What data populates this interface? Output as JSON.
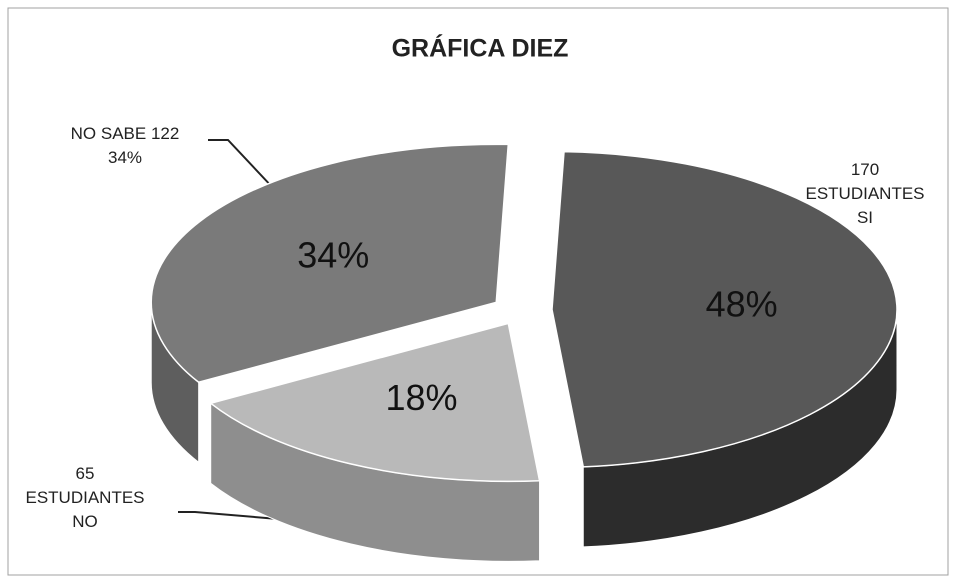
{
  "chart_data": {
    "type": "pie",
    "title": "GRÁFICA DIEZ",
    "categories": [
      "170 ESTUDIANTES SI",
      "65 ESTUDIANTES NO",
      "NO SABE 122"
    ],
    "values": [
      48,
      18,
      34
    ],
    "value_labels": [
      "48%",
      "18%",
      "34%"
    ],
    "colors": [
      "#585858",
      "#b9b9b9",
      "#7a7a7a"
    ],
    "side_colors": [
      "#2c2c2c",
      "#8e8e8e",
      "#5e5e5e"
    ]
  }
}
